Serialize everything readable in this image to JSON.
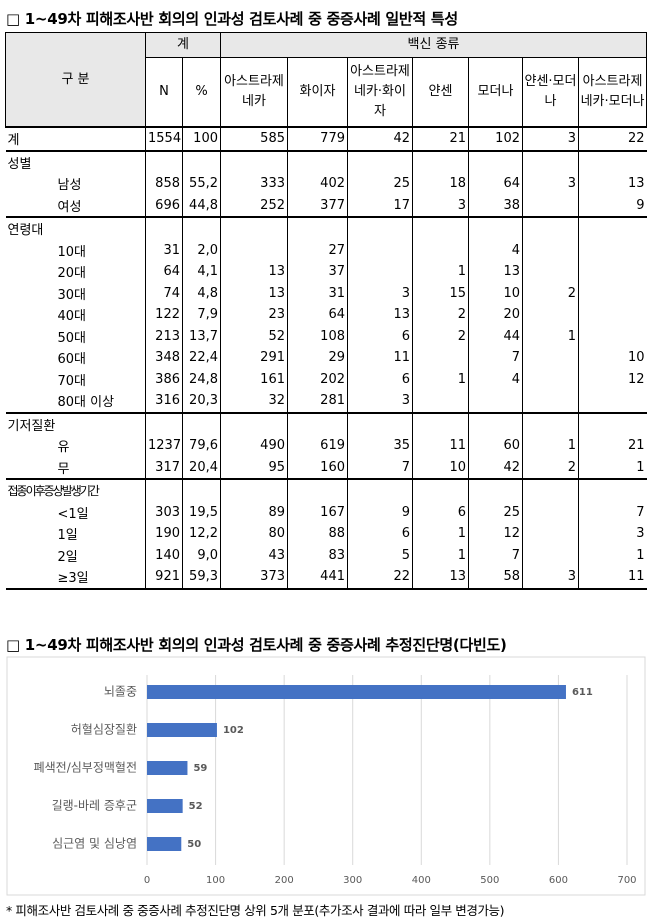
{
  "table_title": "□ 1~49차 피해조사반 회의의 인과성 검토사례 중 중증사례 일반적 특성",
  "table": {
    "header": {
      "category": "구 분",
      "total": "계",
      "vaccine": "백신 종류",
      "columns": [
        "N",
        "%",
        "아스트라제네카",
        "화이자",
        "아스트라제네카·화이자",
        "얀센",
        "모더나",
        "얀센·모더나",
        "아스트라제네카·모더나"
      ]
    },
    "sections": [
      {
        "rows": [
          {
            "label": "계",
            "cells": [
              "1554",
              "100",
              "585",
              "779",
              "42",
              "21",
              "102",
              "3",
              "22"
            ]
          }
        ]
      },
      {
        "label": "성별",
        "rows": [
          {
            "label": "남성",
            "cells": [
              "858",
              "55,2",
              "333",
              "402",
              "25",
              "18",
              "64",
              "3",
              "13"
            ]
          },
          {
            "label": "여성",
            "cells": [
              "696",
              "44,8",
              "252",
              "377",
              "17",
              "3",
              "38",
              null,
              "9"
            ]
          }
        ]
      },
      {
        "label": "연령대",
        "rows": [
          {
            "label": "10대",
            "cells": [
              "31",
              "2,0",
              null,
              "27",
              null,
              null,
              "4",
              null,
              null
            ]
          },
          {
            "label": "20대",
            "cells": [
              "64",
              "4,1",
              "13",
              "37",
              null,
              "1",
              "13",
              null,
              null
            ]
          },
          {
            "label": "30대",
            "cells": [
              "74",
              "4,8",
              "13",
              "31",
              "3",
              "15",
              "10",
              "2",
              null
            ]
          },
          {
            "label": "40대",
            "cells": [
              "122",
              "7,9",
              "23",
              "64",
              "13",
              "2",
              "20",
              null,
              null
            ]
          },
          {
            "label": "50대",
            "cells": [
              "213",
              "13,7",
              "52",
              "108",
              "6",
              "2",
              "44",
              "1",
              null
            ]
          },
          {
            "label": "60대",
            "cells": [
              "348",
              "22,4",
              "291",
              "29",
              "11",
              null,
              "7",
              null,
              "10"
            ]
          },
          {
            "label": "70대",
            "cells": [
              "386",
              "24,8",
              "161",
              "202",
              "6",
              "1",
              "4",
              null,
              "12"
            ]
          },
          {
            "label": "80대 이상",
            "cells": [
              "316",
              "20,3",
              "32",
              "281",
              "3",
              null,
              null,
              null,
              null
            ]
          }
        ]
      },
      {
        "label": "기저질환",
        "rows": [
          {
            "label": "유",
            "cells": [
              "1237",
              "79,6",
              "490",
              "619",
              "35",
              "11",
              "60",
              "1",
              "21"
            ]
          },
          {
            "label": "무",
            "cells": [
              "317",
              "20,4",
              "95",
              "160",
              "7",
              "10",
              "42",
              "2",
              "1"
            ]
          }
        ]
      },
      {
        "label": "접종이후증상발생기간",
        "rows": [
          {
            "label": "<1일",
            "cells": [
              "303",
              "19,5",
              "89",
              "167",
              "9",
              "6",
              "25",
              null,
              "7"
            ]
          },
          {
            "label": "1일",
            "cells": [
              "190",
              "12,2",
              "80",
              "88",
              "6",
              "1",
              "12",
              null,
              "3"
            ]
          },
          {
            "label": "2일",
            "cells": [
              "140",
              "9,0",
              "43",
              "83",
              "5",
              "1",
              "7",
              null,
              "1"
            ]
          },
          {
            "label": "≥3일",
            "cells": [
              "921",
              "59,3",
              "373",
              "441",
              "22",
              "13",
              "58",
              "3",
              "11"
            ]
          }
        ]
      }
    ]
  },
  "chart_data": {
    "type": "bar",
    "orientation": "horizontal",
    "title": "□ 1~49차 피해조사반 회의의 인과성 검토사례 중 중증사례 추정진단명(다빈도)",
    "categories": [
      "뇌졸중",
      "허혈심장질환",
      "폐색전/심부정맥혈전",
      "길랭-바레 증후군",
      "심근염 및 심낭염"
    ],
    "values": [
      611,
      102,
      59,
      52,
      50
    ],
    "color": "#4472c4",
    "xlim": [
      0,
      700
    ],
    "xticks": [
      0,
      100,
      200,
      300,
      400,
      500,
      600,
      700
    ],
    "grid": true
  },
  "footnote": "* 피해조사반 검토사례 중 중증사례 추정진단명 상위 5개 분포(추가조사 결과에 따라 일부 변경가능)"
}
